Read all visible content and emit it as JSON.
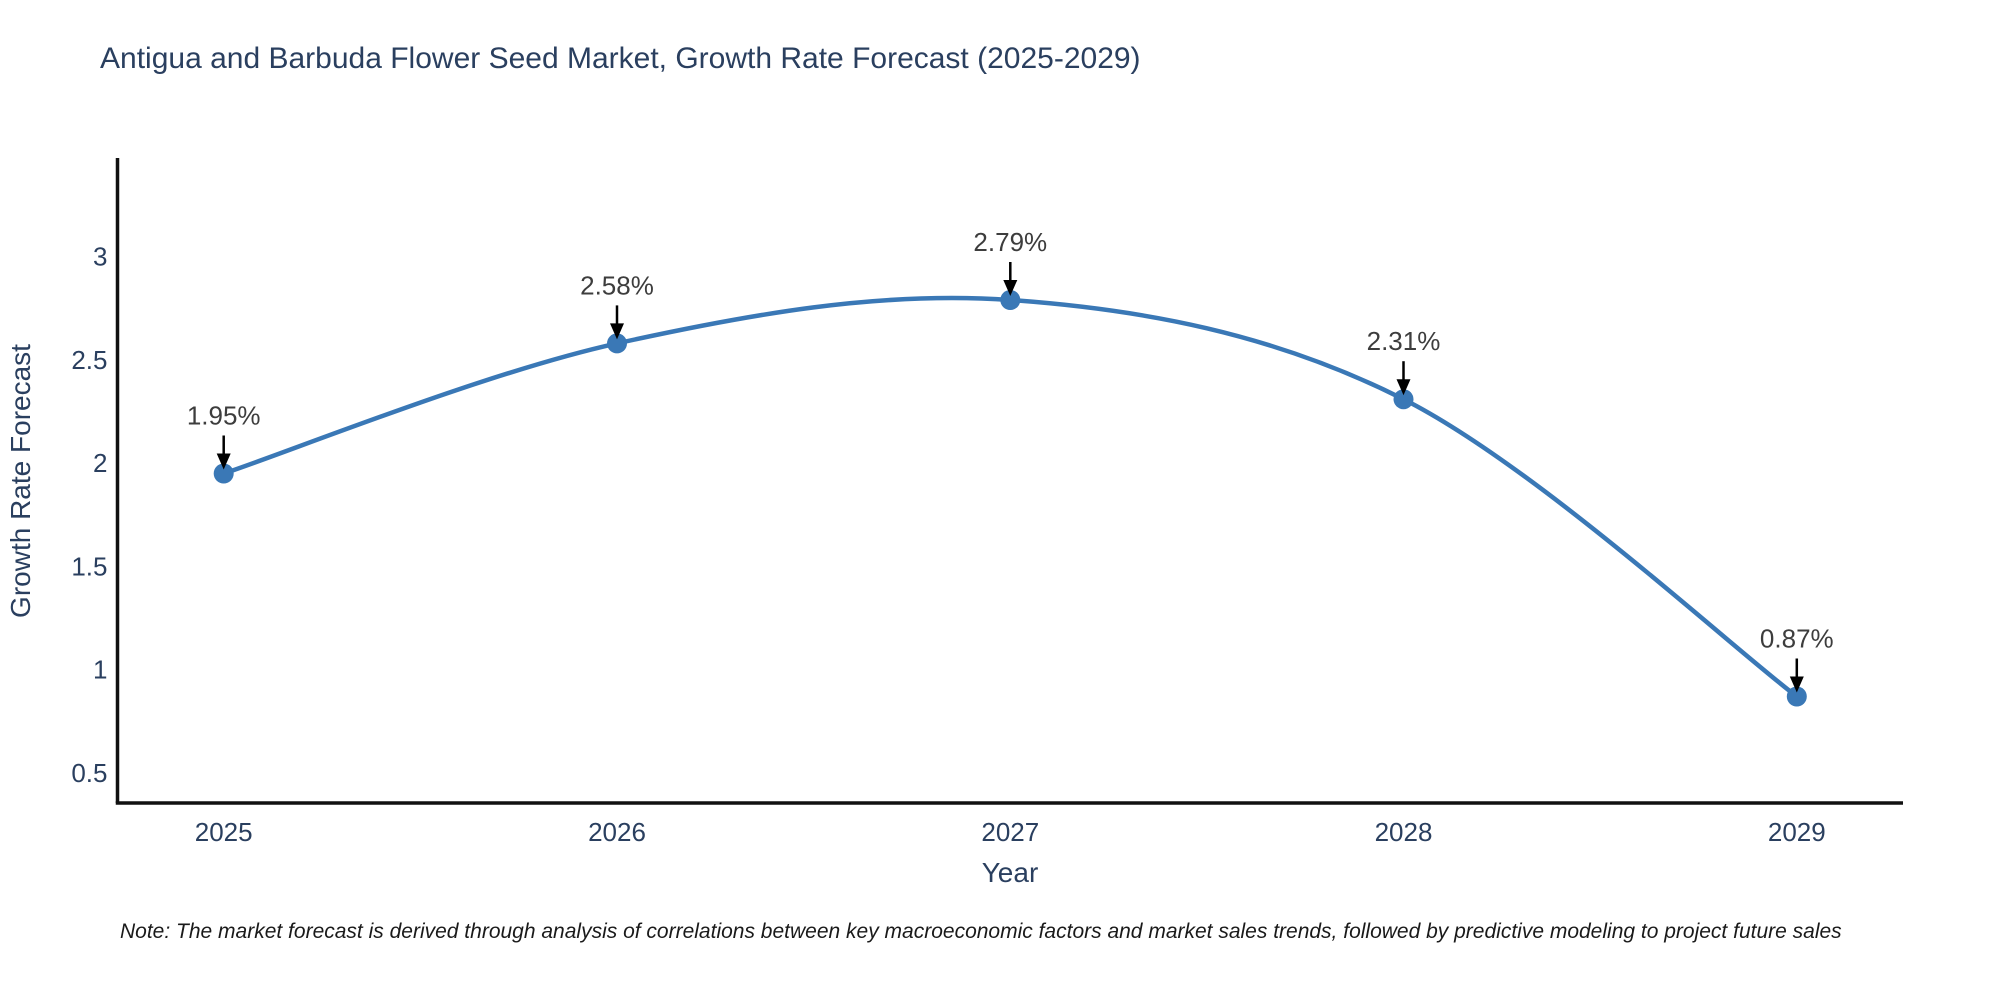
{
  "chart_data": {
    "type": "line",
    "title": "Antigua and Barbuda Flower Seed Market, Growth Rate Forecast (2025-2029)",
    "xlabel": "Year",
    "ylabel": "Growth Rate Forecast",
    "x": [
      2025,
      2026,
      2027,
      2028,
      2029
    ],
    "series": [
      {
        "name": "Growth Rate Forecast",
        "values": [
          1.95,
          2.58,
          2.79,
          2.31,
          0.87
        ],
        "point_labels": [
          "1.95%",
          "2.58%",
          "2.79%",
          "2.31%",
          "0.87%"
        ]
      }
    ],
    "x_tick_labels": [
      "2025",
      "2026",
      "2027",
      "2028",
      "2029"
    ],
    "y_ticks": [
      0.5,
      1,
      1.5,
      2,
      2.5,
      3
    ],
    "y_tick_labels": [
      "0.5",
      "1",
      "1.5",
      "2",
      "2.5",
      "3"
    ],
    "xlim": [
      2024.73,
      2029.27
    ],
    "ylim": [
      0.354,
      3.478
    ],
    "line_shape": "spline",
    "grid": false,
    "legend_position": "none",
    "colors": {
      "line": "#3a78b6",
      "marker": "#3a78b6",
      "arrow": "#000000",
      "annotation_text": "#3d3d3d",
      "axis_line": "#111111",
      "text": "#2a3f5f"
    }
  },
  "note": {
    "text": "Note: The market forecast is derived through analysis of correlations between key macroeconomic factors and market sales trends, followed by predictive modeling to project future sales"
  }
}
